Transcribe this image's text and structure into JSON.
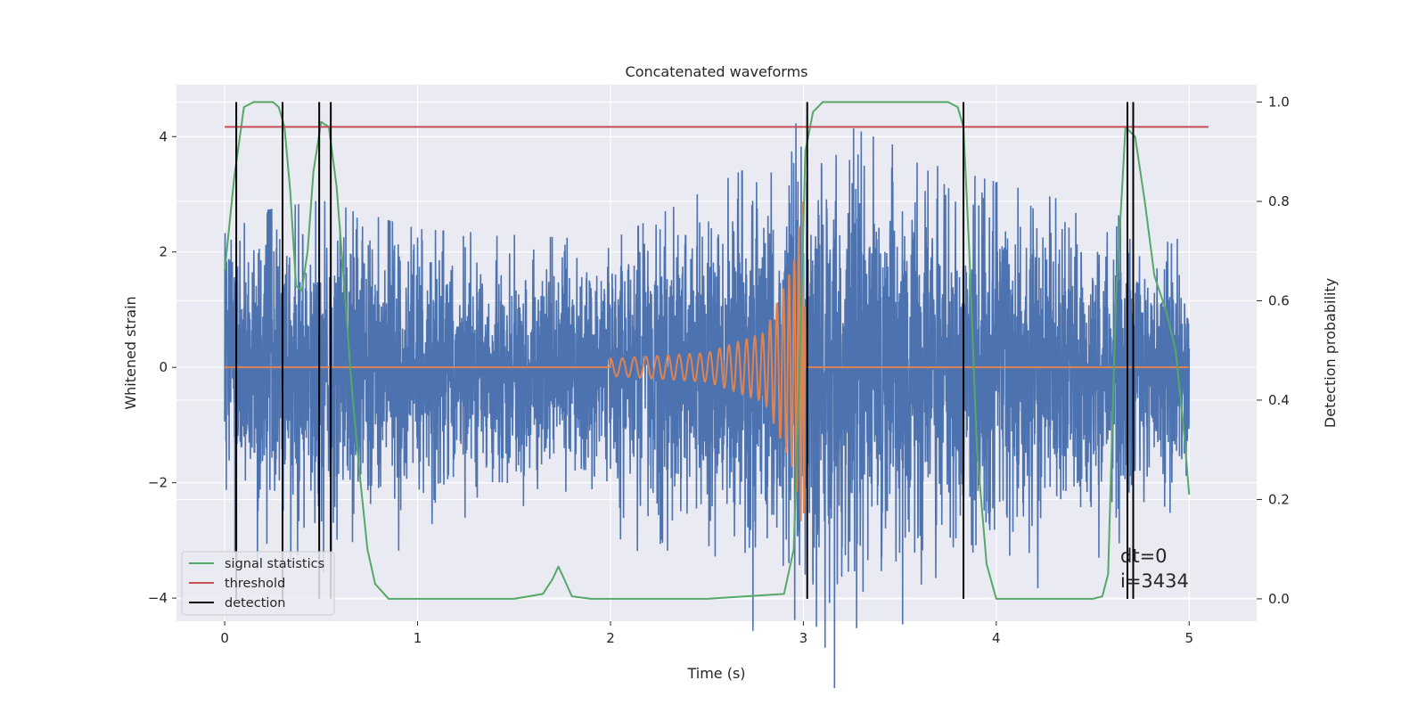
{
  "chart_data": {
    "type": "line",
    "title": "Concatenated waveforms",
    "xlabel": "Time (s)",
    "ylabel": "Whitened strain",
    "ylabel_right": "Detection probability",
    "xlim": [
      -0.25,
      5.35
    ],
    "ylim": [
      -4.4,
      4.9
    ],
    "ylim_right": [
      -0.045,
      1.035
    ],
    "xticks": [
      0,
      1,
      2,
      3,
      4,
      5
    ],
    "xtick_labels": [
      "0",
      "1",
      "2",
      "3",
      "4",
      "5"
    ],
    "yticks": [
      -4,
      -2,
      0,
      2,
      4
    ],
    "ytick_labels": [
      "−4",
      "−2",
      "0",
      "2",
      "4"
    ],
    "yticks_right": [
      0.0,
      0.2,
      0.4,
      0.6,
      0.8,
      1.0
    ],
    "ytick_labels_right": [
      "0.0",
      "0.2",
      "0.4",
      "0.6",
      "0.8",
      "1.0"
    ],
    "grid": true,
    "legend_position": "lower-left",
    "colors": {
      "background": "#eaeaf2",
      "grid": "#ffffff",
      "noise": "#4c72b0",
      "waveform": "#dd8452",
      "signal_statistics": "#55a868",
      "threshold": "#c44e52",
      "detection": "#000000"
    },
    "series": [
      {
        "name": "",
        "axis": "left",
        "style": "noise",
        "color": "#4c72b0",
        "x_range": [
          0,
          5
        ],
        "amplitude_envelope": [
          [
            0,
            2.6
          ],
          [
            0.5,
            2.9
          ],
          [
            1.0,
            2.4
          ],
          [
            2.0,
            2.2
          ],
          [
            2.9,
            3.8
          ],
          [
            3.0,
            4.5
          ],
          [
            3.8,
            3.4
          ],
          [
            5.0,
            2.3
          ]
        ]
      },
      {
        "name": "",
        "axis": "left",
        "style": "chirp",
        "color": "#dd8452",
        "x": [
          0,
          2.0,
          2.5,
          2.8,
          2.95,
          3.0,
          3.02,
          5.0
        ],
        "envelope": [
          0,
          0.15,
          0.25,
          0.6,
          1.8,
          3.0,
          0,
          0
        ]
      },
      {
        "name": "signal statistics",
        "axis": "right",
        "color": "#55a868",
        "x": [
          0,
          0.05,
          0.1,
          0.15,
          0.2,
          0.25,
          0.28,
          0.31,
          0.34,
          0.37,
          0.4,
          0.43,
          0.46,
          0.5,
          0.54,
          0.58,
          0.62,
          0.66,
          0.7,
          0.74,
          0.78,
          0.85,
          1.0,
          1.5,
          1.65,
          1.7,
          1.73,
          1.76,
          1.8,
          1.9,
          2.0,
          2.5,
          2.9,
          2.95,
          2.98,
          3.01,
          3.05,
          3.1,
          3.5,
          3.75,
          3.8,
          3.83,
          3.86,
          3.9,
          3.95,
          4.0,
          4.5,
          4.55,
          4.58,
          4.62,
          4.67,
          4.72,
          4.77,
          4.82,
          4.88,
          4.93,
          4.97,
          5.0
        ],
        "y": [
          0.66,
          0.85,
          0.99,
          1.0,
          1.0,
          1.0,
          0.99,
          0.95,
          0.82,
          0.63,
          0.62,
          0.7,
          0.86,
          0.96,
          0.95,
          0.83,
          0.63,
          0.42,
          0.25,
          0.1,
          0.03,
          0.0,
          0.0,
          0.0,
          0.01,
          0.04,
          0.065,
          0.04,
          0.005,
          0.0,
          0.0,
          0.0,
          0.01,
          0.1,
          0.45,
          0.9,
          0.98,
          1.0,
          1.0,
          1.0,
          0.99,
          0.95,
          0.7,
          0.3,
          0.07,
          0.0,
          0.0,
          0.005,
          0.05,
          0.6,
          0.95,
          0.93,
          0.8,
          0.65,
          0.58,
          0.5,
          0.35,
          0.21
        ]
      },
      {
        "name": "threshold",
        "axis": "right",
        "color": "#c44e52",
        "x": [
          0,
          5.1
        ],
        "y": [
          0.95,
          0.95
        ]
      },
      {
        "name": "detection",
        "axis": "right",
        "color": "#000000",
        "style": "vlines",
        "x": [
          0.06,
          0.3,
          0.49,
          0.55,
          3.02,
          3.83,
          4.68,
          4.71
        ],
        "y_range": [
          0.0,
          1.0
        ]
      }
    ],
    "annotations": [
      "dt=0",
      "i=3434"
    ]
  }
}
